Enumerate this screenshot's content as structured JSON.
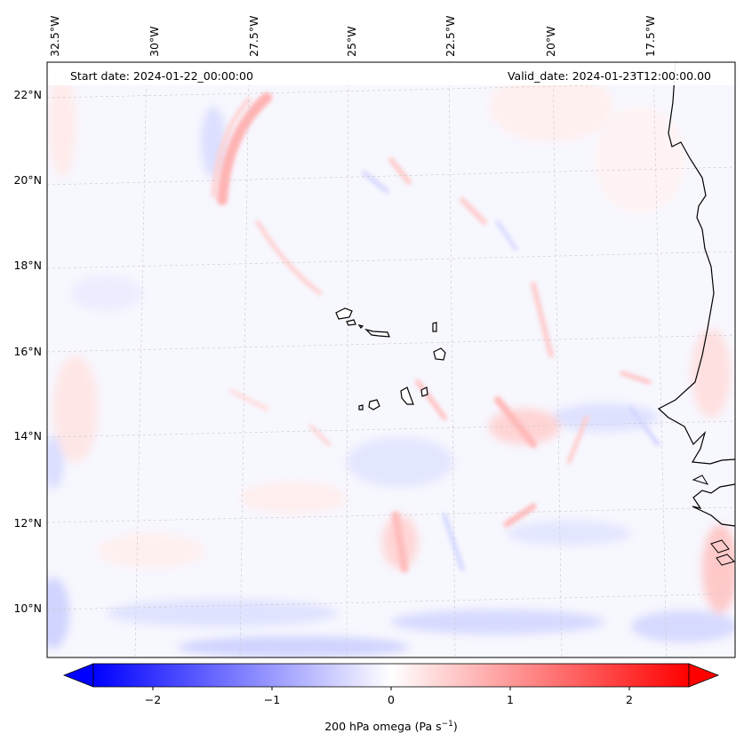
{
  "header": {
    "start_label": "Start date: 2024-01-22_00:00:00",
    "valid_label": "Valid_date: 2024-01-23T12:00:00.00"
  },
  "axes": {
    "lon_ticks": [
      "32.5°W",
      "30°W",
      "27.5°W",
      "25°W",
      "22.5°W",
      "20°W",
      "17.5°W"
    ],
    "lat_ticks": [
      "22°N",
      "20°N",
      "18°N",
      "16°N",
      "14°N",
      "12°N",
      "10°N"
    ]
  },
  "colorbar": {
    "label_main": "200 hPa omega (Pa s",
    "label_exp": "−1",
    "label_close": ")",
    "ticks": [
      "−2",
      "−1",
      "0",
      "1",
      "2"
    ],
    "vmin": -2.6,
    "vmax": 2.6,
    "colors": {
      "negative": "#0000ff",
      "zero": "#ffffff",
      "positive": "#ff0000"
    }
  },
  "map": {
    "field": "200 hPa omega",
    "region": "Cabo Verde / West African coast",
    "coastline_color": "#000000",
    "gridlines": "dashed-light-gray"
  }
}
